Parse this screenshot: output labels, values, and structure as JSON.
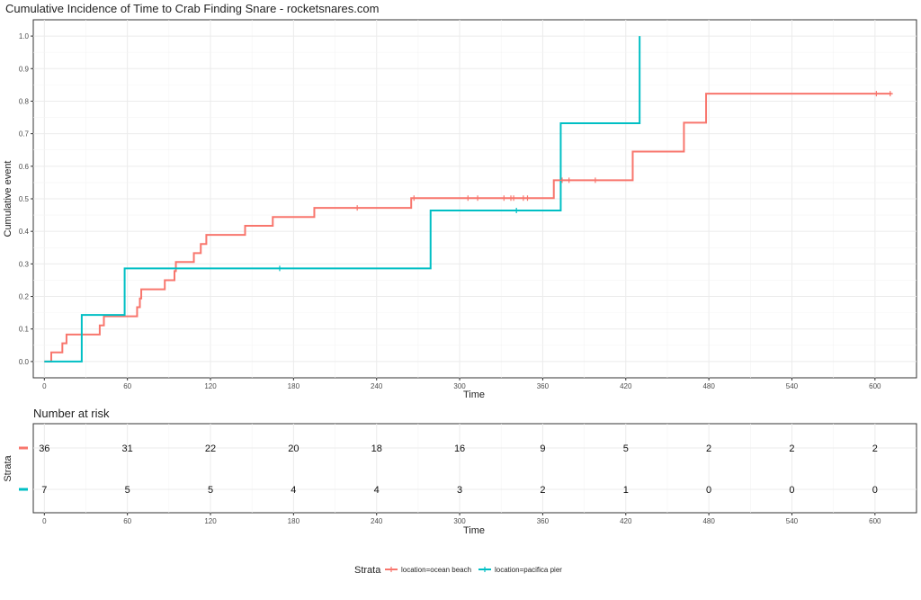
{
  "chart_data": [
    {
      "type": "line",
      "step": true,
      "title": "Cumulative Incidence of Time to Crab Finding Snare - rocketsnares.com",
      "xlabel": "Time",
      "ylabel": "Cumulative event",
      "xlim": [
        -8,
        630
      ],
      "ylim": [
        -0.05,
        1.05
      ],
      "xticks": [
        0,
        60,
        120,
        180,
        240,
        300,
        360,
        420,
        480,
        540,
        600
      ],
      "yticks": [
        0.0,
        0.1,
        0.2,
        0.3,
        0.4,
        0.5,
        0.6,
        0.7,
        0.8,
        0.9,
        1.0
      ],
      "grid": true,
      "legend": {
        "title": "Strata",
        "position": "bottom",
        "entries": [
          "location=ocean beach",
          "location=pacifica pier"
        ]
      },
      "series": [
        {
          "name": "location=ocean beach",
          "color": "#F8766D",
          "x": [
            0,
            5,
            13,
            16,
            23,
            26,
            40,
            43,
            67,
            69,
            70,
            71,
            75,
            87,
            90,
            94,
            95,
            108,
            110,
            113,
            117,
            145,
            165,
            195,
            265,
            368,
            425,
            462,
            478,
            612
          ],
          "y": [
            0.0,
            0.028,
            0.056,
            0.083,
            0.083,
            0.083,
            0.111,
            0.139,
            0.167,
            0.194,
            0.222,
            0.222,
            0.222,
            0.25,
            0.25,
            0.278,
            0.306,
            0.333,
            0.333,
            0.361,
            0.389,
            0.417,
            0.444,
            0.472,
            0.502,
            0.557,
            0.645,
            0.734,
            0.823,
            0.823
          ],
          "censor_x": [
            226,
            267,
            306,
            313,
            332,
            337,
            339,
            346,
            349,
            374,
            379,
            398,
            601,
            611
          ],
          "censor_y": [
            0.472,
            0.502,
            0.502,
            0.502,
            0.502,
            0.502,
            0.502,
            0.502,
            0.502,
            0.557,
            0.557,
            0.557,
            0.823,
            0.823
          ]
        },
        {
          "name": "location=pacifica pier",
          "color": "#00BFC4",
          "x": [
            0,
            27,
            58,
            279,
            373,
            430,
            430
          ],
          "y": [
            0.0,
            0.143,
            0.286,
            0.464,
            0.732,
            0.732,
            1.0
          ],
          "censor_x": [
            170,
            341
          ],
          "censor_y": [
            0.286,
            0.464
          ]
        }
      ]
    },
    {
      "type": "table",
      "title": "Number at risk",
      "xlabel": "Time",
      "ylabel": "Strata",
      "columns": [
        0,
        60,
        120,
        180,
        240,
        300,
        360,
        420,
        480,
        540,
        600
      ],
      "xticks": [
        0,
        60,
        120,
        180,
        240,
        300,
        360,
        420,
        480,
        540,
        600
      ],
      "rows": [
        {
          "color": "#F8766D",
          "values": [
            36,
            31,
            22,
            20,
            18,
            16,
            9,
            5,
            2,
            2,
            2
          ]
        },
        {
          "color": "#00BFC4",
          "values": [
            7,
            5,
            5,
            4,
            4,
            3,
            2,
            1,
            0,
            0,
            0
          ]
        }
      ]
    }
  ]
}
